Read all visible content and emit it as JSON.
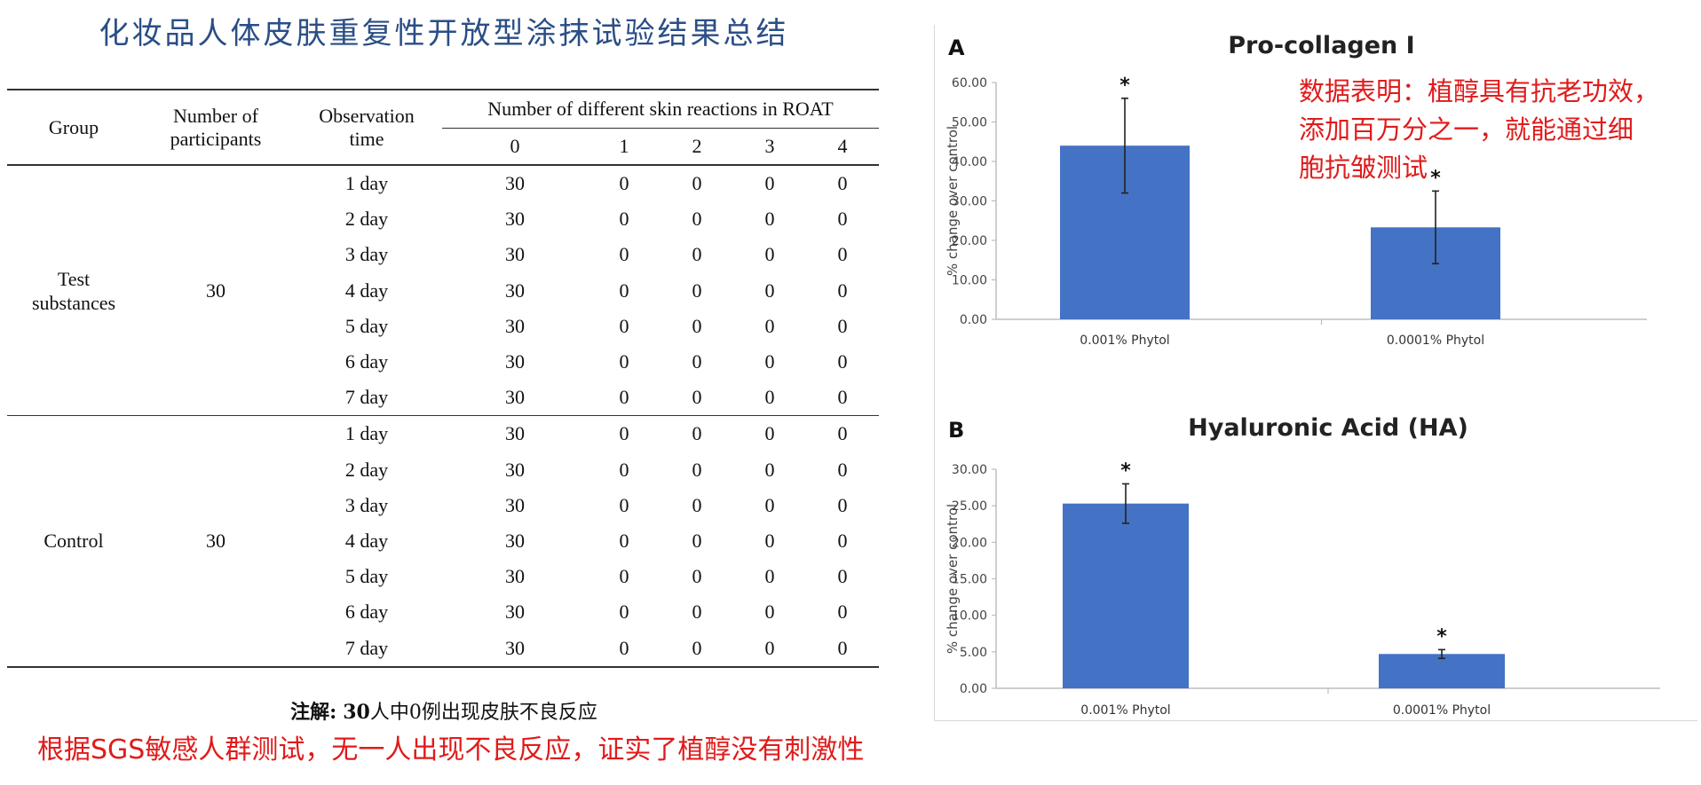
{
  "left_title": "化妆品人体皮肤重复性开放型涂抹试验结果总结",
  "table": {
    "headers": {
      "group": "Group",
      "participants": [
        "Number of",
        "participants"
      ],
      "observation": [
        "Observation",
        "time"
      ],
      "reactions": "Number of different skin reactions in ROAT",
      "levels": [
        "0",
        "1",
        "2",
        "3",
        "4"
      ]
    },
    "groups": [
      {
        "label": [
          "Test",
          "substances"
        ],
        "participants": "30",
        "rows": [
          {
            "time": "1 day",
            "counts": [
              "30",
              "0",
              "0",
              "0",
              "0"
            ]
          },
          {
            "time": "2 day",
            "counts": [
              "30",
              "0",
              "0",
              "0",
              "0"
            ]
          },
          {
            "time": "3 day",
            "counts": [
              "30",
              "0",
              "0",
              "0",
              "0"
            ]
          },
          {
            "time": "4 day",
            "counts": [
              "30",
              "0",
              "0",
              "0",
              "0"
            ]
          },
          {
            "time": "5 day",
            "counts": [
              "30",
              "0",
              "0",
              "0",
              "0"
            ]
          },
          {
            "time": "6 day",
            "counts": [
              "30",
              "0",
              "0",
              "0",
              "0"
            ]
          },
          {
            "time": "7 day",
            "counts": [
              "30",
              "0",
              "0",
              "0",
              "0"
            ]
          }
        ]
      },
      {
        "label": [
          "Control"
        ],
        "participants": "30",
        "rows": [
          {
            "time": "1 day",
            "counts": [
              "30",
              "0",
              "0",
              "0",
              "0"
            ]
          },
          {
            "time": "2 day",
            "counts": [
              "30",
              "0",
              "0",
              "0",
              "0"
            ]
          },
          {
            "time": "3 day",
            "counts": [
              "30",
              "0",
              "0",
              "0",
              "0"
            ]
          },
          {
            "time": "4 day",
            "counts": [
              "30",
              "0",
              "0",
              "0",
              "0"
            ]
          },
          {
            "time": "5 day",
            "counts": [
              "30",
              "0",
              "0",
              "0",
              "0"
            ]
          },
          {
            "time": "6 day",
            "counts": [
              "30",
              "0",
              "0",
              "0",
              "0"
            ]
          },
          {
            "time": "7 day",
            "counts": [
              "30",
              "0",
              "0",
              "0",
              "0"
            ]
          }
        ]
      }
    ],
    "note_prefix": "注解:",
    "note_bold": "30",
    "note_rest": "人中0例出现皮肤不良反应"
  },
  "left_red_caption": "根据SGS敏感人群测试，无一人出现不良反应，证实了植醇没有刺激性",
  "right_red_note": [
    "数据表明：植醇具有抗老功效，",
    "添加百万分之一，就能通过细",
    "胞抗皱测试"
  ],
  "colors": {
    "title_blue": "#2a4e86",
    "bar_blue": "#4472c4",
    "red_text": "#e01b1b"
  },
  "chart_data": [
    {
      "type": "bar",
      "panel_letter": "A",
      "title": "Pro-collagen I",
      "ylabel": "% change over control",
      "categories": [
        "0.001% Phytol",
        "0.0001% Phytol"
      ],
      "values": [
        44.0,
        23.3
      ],
      "error": [
        12.0,
        9.2
      ],
      "significance": [
        "*",
        "*"
      ],
      "ylim": [
        0,
        60
      ],
      "yticks": [
        "0.00",
        "10.00",
        "20.00",
        "30.00",
        "40.00",
        "50.00",
        "60.00"
      ],
      "ytick_values": [
        0,
        10,
        20,
        30,
        40,
        50,
        60
      ],
      "grid": false
    },
    {
      "type": "bar",
      "panel_letter": "B",
      "title": "Hyaluronic Acid (HA)",
      "ylabel": "% change over control",
      "categories": [
        "0.001% Phytol",
        "0.0001% Phytol"
      ],
      "values": [
        25.3,
        4.7
      ],
      "error": [
        2.7,
        0.6
      ],
      "significance": [
        "*",
        "*"
      ],
      "ylim": [
        0,
        30
      ],
      "yticks": [
        "0.00",
        "5.00",
        "10.00",
        "15.00",
        "20.00",
        "25.00",
        "30.00"
      ],
      "ytick_values": [
        0,
        5,
        10,
        15,
        20,
        25,
        30
      ],
      "grid": false
    }
  ]
}
